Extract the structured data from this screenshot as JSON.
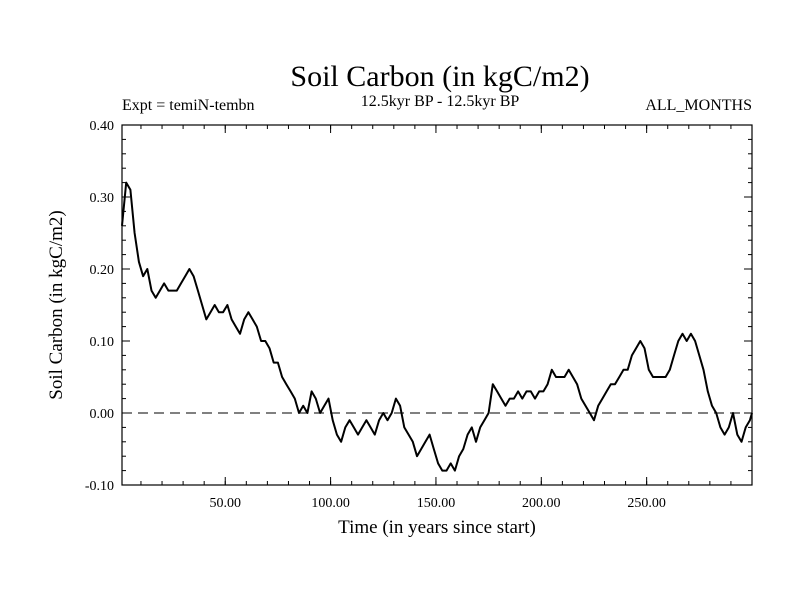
{
  "chart_data": {
    "type": "line",
    "title": "Soil Carbon (in kgC/m2)",
    "subtitle_left": "Expt = temiN-tembn",
    "subtitle_center": "12.5kyr BP - 12.5kyr BP",
    "subtitle_right": "ALL_MONTHS",
    "xlabel": "Time (in years since start)",
    "ylabel": "Soil Carbon (in kgC/m2)",
    "xlim": [
      1,
      300
    ],
    "ylim": [
      -0.1,
      0.4
    ],
    "x_ticks": [
      50,
      100,
      150,
      200,
      250
    ],
    "x_tick_labels": [
      "50.00",
      "100.00",
      "150.00",
      "200.00",
      "250.00"
    ],
    "y_ticks": [
      -0.1,
      0.0,
      0.1,
      0.2,
      0.3,
      0.4
    ],
    "y_tick_labels": [
      "-0.10",
      "0.00",
      "0.10",
      "0.20",
      "0.30",
      "0.40"
    ],
    "reference_line": {
      "y": 0.0,
      "style": "dashed"
    },
    "series": [
      {
        "name": "Soil Carbon",
        "x": [
          1,
          3,
          5,
          7,
          9,
          11,
          13,
          15,
          17,
          19,
          21,
          23,
          25,
          27,
          29,
          31,
          33,
          35,
          37,
          39,
          41,
          43,
          45,
          47,
          49,
          51,
          53,
          55,
          57,
          59,
          61,
          63,
          65,
          67,
          69,
          71,
          73,
          75,
          77,
          79,
          81,
          83,
          85,
          87,
          89,
          91,
          93,
          95,
          97,
          99,
          101,
          103,
          105,
          107,
          109,
          111,
          113,
          115,
          117,
          119,
          121,
          123,
          125,
          127,
          129,
          131,
          133,
          135,
          137,
          139,
          141,
          143,
          145,
          147,
          149,
          151,
          153,
          155,
          157,
          159,
          161,
          163,
          165,
          167,
          169,
          171,
          173,
          175,
          177,
          179,
          181,
          183,
          185,
          187,
          189,
          191,
          193,
          195,
          197,
          199,
          201,
          203,
          205,
          207,
          209,
          211,
          213,
          215,
          217,
          219,
          221,
          223,
          225,
          227,
          229,
          231,
          233,
          235,
          237,
          239,
          241,
          243,
          245,
          247,
          249,
          251,
          253,
          255,
          257,
          259,
          261,
          263,
          265,
          267,
          269,
          271,
          273,
          275,
          277,
          279,
          281,
          283,
          285,
          287,
          289,
          291,
          293,
          295,
          297,
          299,
          300
        ],
        "values": [
          0.26,
          0.32,
          0.31,
          0.25,
          0.21,
          0.19,
          0.2,
          0.17,
          0.16,
          0.17,
          0.18,
          0.17,
          0.17,
          0.17,
          0.18,
          0.19,
          0.2,
          0.19,
          0.17,
          0.15,
          0.13,
          0.14,
          0.15,
          0.14,
          0.14,
          0.15,
          0.13,
          0.12,
          0.11,
          0.13,
          0.14,
          0.13,
          0.12,
          0.1,
          0.1,
          0.09,
          0.07,
          0.07,
          0.05,
          0.04,
          0.03,
          0.02,
          0.0,
          0.01,
          0.0,
          0.03,
          0.02,
          0.0,
          0.01,
          0.02,
          -0.01,
          -0.03,
          -0.04,
          -0.02,
          -0.01,
          -0.02,
          -0.03,
          -0.02,
          -0.01,
          -0.02,
          -0.03,
          -0.01,
          0.0,
          -0.01,
          0.0,
          0.02,
          0.01,
          -0.02,
          -0.03,
          -0.04,
          -0.06,
          -0.05,
          -0.04,
          -0.03,
          -0.05,
          -0.07,
          -0.08,
          -0.08,
          -0.07,
          -0.08,
          -0.06,
          -0.05,
          -0.03,
          -0.02,
          -0.04,
          -0.02,
          -0.01,
          0.0,
          0.04,
          0.03,
          0.02,
          0.01,
          0.02,
          0.02,
          0.03,
          0.02,
          0.03,
          0.03,
          0.02,
          0.03,
          0.03,
          0.04,
          0.06,
          0.05,
          0.05,
          0.05,
          0.06,
          0.05,
          0.04,
          0.02,
          0.01,
          0.0,
          -0.01,
          0.01,
          0.02,
          0.03,
          0.04,
          0.04,
          0.05,
          0.06,
          0.06,
          0.08,
          0.09,
          0.1,
          0.09,
          0.06,
          0.05,
          0.05,
          0.05,
          0.05,
          0.06,
          0.08,
          0.1,
          0.11,
          0.1,
          0.11,
          0.1,
          0.08,
          0.06,
          0.03,
          0.01,
          0.0,
          -0.02,
          -0.03,
          -0.02,
          0.0,
          -0.03,
          -0.04,
          -0.02,
          -0.01,
          0.0
        ]
      }
    ]
  }
}
